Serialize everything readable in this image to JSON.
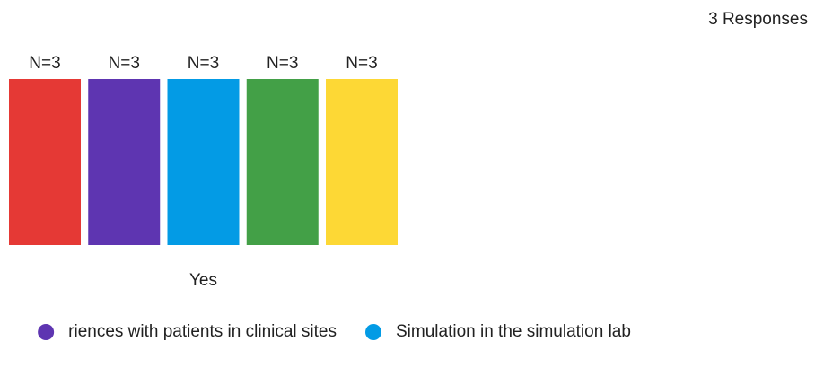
{
  "chart_data": {
    "type": "bar",
    "title": "3 Responses",
    "categories": [
      "Yes"
    ],
    "series": [
      {
        "color": "#e53935",
        "values": [
          3
        ],
        "value_labels": [
          "N=3"
        ]
      },
      {
        "name": "riences with patients in clinical sites",
        "color": "#5e35b1",
        "values": [
          3
        ],
        "value_labels": [
          "N=3"
        ]
      },
      {
        "name": "Simulation in the simulation lab",
        "color": "#039be5",
        "values": [
          3
        ],
        "value_labels": [
          "N=3"
        ]
      },
      {
        "color": "#43a047",
        "values": [
          3
        ],
        "value_labels": [
          "N=3"
        ]
      },
      {
        "color": "#fdd835",
        "values": [
          3
        ],
        "value_labels": [
          "N=3"
        ]
      }
    ]
  }
}
